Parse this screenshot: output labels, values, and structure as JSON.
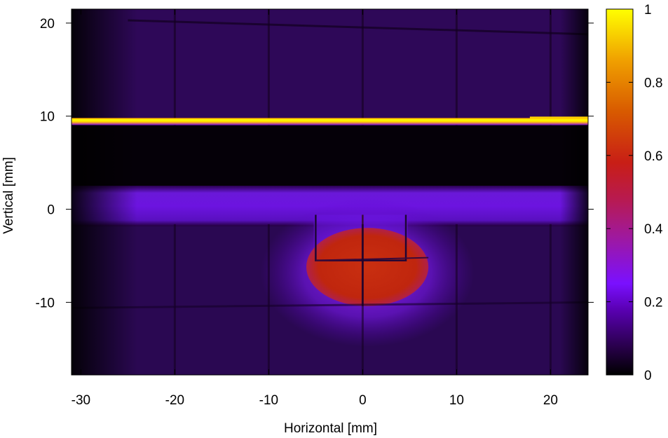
{
  "chart_data": {
    "type": "heatmap",
    "title": "",
    "xlabel": "Horizontal [mm]",
    "ylabel": "Vertical [mm]",
    "xlim": [
      -31,
      24
    ],
    "ylim": [
      -17.8,
      21.5
    ],
    "xticks": [
      -30,
      -20,
      -10,
      0,
      10,
      20
    ],
    "yticks": [
      -10,
      0,
      10,
      20
    ],
    "colorbar": {
      "range": [
        0,
        1
      ],
      "ticks": [
        0,
        0.2,
        0.4,
        0.6,
        0.8,
        1
      ],
      "tick_labels": [
        "0",
        "0.2",
        "0.4",
        "0.6",
        "0.8",
        "1"
      ],
      "palette": [
        "#000000",
        "#2a004e",
        "#5a00b4",
        "#8a1ee0",
        "#b01a80",
        "#c81e16",
        "#d85a00",
        "#f0a000",
        "#ffff00"
      ]
    },
    "features": {
      "background_level": 0.05,
      "upper_band": {
        "y_range": [
          9.8,
          21.5
        ],
        "level": 0.07
      },
      "bright_line": {
        "y": 9.5,
        "level": 1.0
      },
      "dark_gap": {
        "y_range": [
          2.3,
          9.0
        ],
        "level": 0.0
      },
      "mid_band": {
        "y_range": [
          -1.6,
          2.3
        ],
        "level": 0.2
      },
      "lower_region": {
        "y_range": [
          -17.8,
          -1.6
        ],
        "level": 0.08
      },
      "hot_spot": {
        "center": [
          0.5,
          -6.2
        ],
        "radius_x": 6.5,
        "radius_y": 4.2,
        "level": 0.55
      },
      "grid_lines_x_mm": [
        -20,
        -10,
        0,
        10,
        20
      ],
      "grid_lines_y_mm": [
        20,
        -10.4
      ]
    }
  }
}
